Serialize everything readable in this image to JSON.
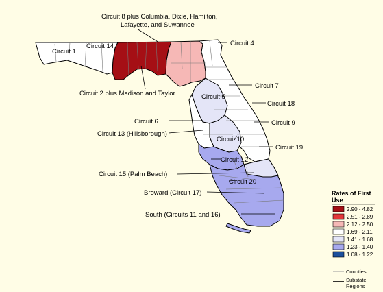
{
  "circuit_labels": {
    "c1": "Circuit 1",
    "c14": "Circuit 14",
    "c8_line1": "Circuit 8 plus Columbia, Dixie, Hamilton,",
    "c8_line2": "Lafayette, and Suwannee",
    "c4": "Circuit 4",
    "c2": "Circuit 2 plus Madison and Taylor",
    "c7": "Circuit 7",
    "c5": "Circuit 5",
    "c18": "Circuit 18",
    "c6": "Circuit 6",
    "c9": "Circuit 9",
    "c13": "Circuit 13 (Hillsborough)",
    "c10": "Circuit 10",
    "c19": "Circuit 19",
    "c12": "Circuit 12",
    "c15": "Circuit 15 (Palm Beach)",
    "c20": "Circuit 20",
    "c17": "Broward (Circuit 17)",
    "south": "South (Circuits 11 and 16)"
  },
  "legend": {
    "title_line1": "Rates of First",
    "title_line2": "Use",
    "items": [
      {
        "label": "2.90 - 4.82",
        "color": "#a50f15"
      },
      {
        "label": "2.51 - 2.89",
        "color": "#e3373a"
      },
      {
        "label": "2.12 - 2.50",
        "color": "#f6b8b6"
      },
      {
        "label": "1.69 - 2.11",
        "color": "#ffffff"
      },
      {
        "label": "1.41 - 1.68",
        "color": "#e4e5f7"
      },
      {
        "label": "1.23 - 1.40",
        "color": "#a7a9ee"
      },
      {
        "label": "1.08 - 1.22",
        "color": "#1b4f9c"
      }
    ],
    "counties_label": "Counties",
    "substate_line1": "Substate",
    "substate_line2": "Regions"
  }
}
